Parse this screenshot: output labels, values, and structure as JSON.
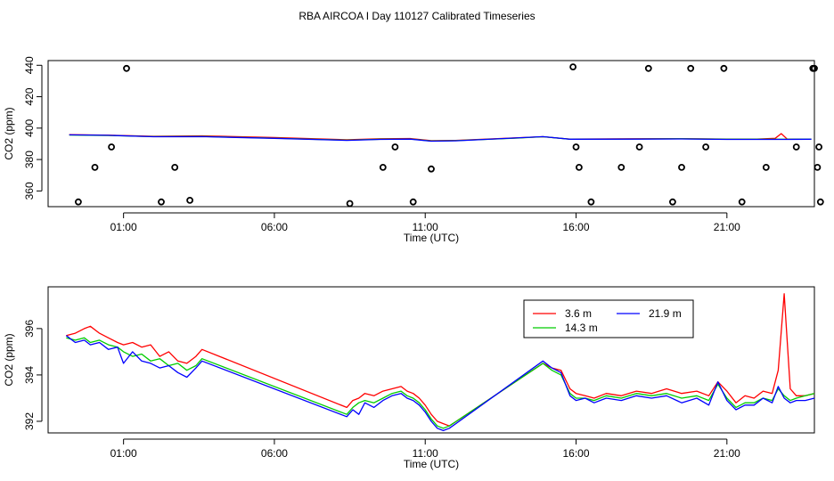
{
  "figure": {
    "title": "RBA AIRCOA I  Day 110127  Calibrated Timeseries"
  },
  "colors": {
    "s36": "#ff0000",
    "s143": "#00cc00",
    "s219": "#0000ff",
    "ink": "#000000"
  },
  "chart_data": [
    {
      "type": "line+scatter",
      "xlabel": "Time (UTC)",
      "ylabel": "CO2 (ppm)",
      "xlim": [
        -1.5,
        23.9
      ],
      "ylim": [
        350,
        443
      ],
      "xticks": [
        1,
        6,
        11,
        16,
        21
      ],
      "xtick_labels": [
        "01:00",
        "06:00",
        "11:00",
        "16:00",
        "21:00"
      ],
      "yticks": [
        360,
        380,
        400,
        420,
        440
      ],
      "ytick_labels": [
        "360",
        "380",
        "400",
        "420",
        "440"
      ],
      "grid": false,
      "series": [
        {
          "color_key": "s36",
          "x": [
            -0.8,
            0.5,
            2.0,
            3.6,
            6.0,
            8.4,
            9.5,
            10.5,
            11.2,
            12.0,
            14.0,
            14.9,
            15.8,
            18.0,
            19.5,
            21.0,
            22.0,
            22.6,
            22.8,
            23.0,
            23.8
          ],
          "y": [
            395.8,
            395.5,
            394.8,
            395.1,
            394.0,
            392.6,
            393.2,
            393.4,
            392.0,
            392.2,
            393.8,
            394.5,
            393.0,
            393.2,
            393.3,
            393.0,
            393.0,
            393.5,
            396.5,
            393.0,
            393.0
          ]
        },
        {
          "color_key": "s143",
          "x": [
            -0.8,
            0.5,
            2.0,
            3.6,
            6.0,
            8.4,
            9.5,
            10.5,
            11.2,
            12.0,
            14.0,
            14.9,
            15.8,
            18.0,
            19.5,
            21.0,
            22.0,
            23.0,
            23.8
          ],
          "y": [
            395.6,
            395.3,
            394.6,
            394.7,
            393.6,
            392.3,
            392.9,
            393.1,
            391.8,
            392.0,
            393.6,
            394.5,
            392.9,
            393.1,
            393.2,
            392.9,
            392.9,
            392.9,
            393.0
          ]
        },
        {
          "color_key": "s219",
          "x": [
            -0.8,
            0.5,
            2.0,
            3.6,
            6.0,
            8.4,
            9.5,
            10.5,
            11.2,
            12.0,
            14.0,
            14.9,
            15.8,
            18.0,
            19.5,
            21.0,
            22.0,
            23.0,
            23.8
          ],
          "y": [
            395.7,
            395.4,
            394.5,
            394.6,
            393.5,
            392.2,
            392.8,
            393.0,
            391.7,
            391.9,
            393.7,
            394.6,
            392.9,
            393.0,
            393.1,
            392.8,
            392.8,
            392.8,
            392.9
          ]
        }
      ],
      "outliers": {
        "x": [
          -0.5,
          0.05,
          0.6,
          1.1,
          2.25,
          2.7,
          3.2,
          8.5,
          9.6,
          10.0,
          10.6,
          11.2,
          15.9,
          16.0,
          16.1,
          16.5,
          17.5,
          18.1,
          18.4,
          19.2,
          19.5,
          19.8,
          20.3,
          20.9,
          21.5,
          22.3,
          23.3,
          23.85,
          24.0,
          24.05,
          24.1,
          23.9
        ],
        "y": [
          353,
          375,
          388,
          438,
          353,
          375,
          354,
          352,
          375,
          388,
          353,
          374,
          439,
          388,
          375,
          353,
          375,
          388,
          438,
          353,
          375,
          438,
          388,
          438,
          353,
          375,
          388,
          438,
          375,
          388,
          353,
          438
        ]
      }
    },
    {
      "type": "line",
      "xlabel": "Time (UTC)",
      "ylabel": "CO2 (ppm)",
      "xlim": [
        -1.5,
        23.9
      ],
      "ylim": [
        391.5,
        397.8
      ],
      "xticks": [
        1,
        6,
        11,
        16,
        21
      ],
      "xtick_labels": [
        "01:00",
        "06:00",
        "11:00",
        "16:00",
        "21:00"
      ],
      "yticks": [
        392,
        394,
        396
      ],
      "ytick_labels": [
        "392",
        "394",
        "396"
      ],
      "grid": false,
      "legend": {
        "position": "top-right",
        "entries": [
          {
            "label": "3.6 m",
            "color_key": "s36"
          },
          {
            "label": "14.3 m",
            "color_key": "s143"
          },
          {
            "label": "21.9 m",
            "color_key": "s219"
          }
        ]
      },
      "series": [
        {
          "name": "3.6 m",
          "color_key": "s36",
          "x": [
            -0.9,
            -0.6,
            -0.3,
            -0.1,
            0.2,
            0.5,
            0.8,
            1.0,
            1.3,
            1.6,
            1.9,
            2.2,
            2.5,
            2.8,
            3.1,
            3.4,
            3.6,
            8.4,
            8.6,
            8.8,
            9.0,
            9.3,
            9.6,
            9.9,
            10.2,
            10.4,
            10.6,
            10.8,
            11.0,
            11.2,
            11.4,
            11.6,
            11.8,
            14.9,
            15.2,
            15.5,
            15.8,
            16.0,
            16.3,
            16.6,
            17.0,
            17.5,
            18.0,
            18.5,
            19.0,
            19.5,
            20.0,
            20.4,
            20.7,
            21.0,
            21.3,
            21.6,
            21.9,
            22.2,
            22.5,
            22.7,
            22.9,
            23.1,
            23.3,
            23.6,
            23.9
          ],
          "y": [
            395.7,
            395.8,
            396.0,
            396.1,
            395.8,
            395.6,
            395.4,
            395.3,
            395.4,
            395.2,
            395.3,
            394.8,
            395.0,
            394.6,
            394.5,
            394.8,
            395.1,
            392.6,
            392.9,
            393.0,
            393.2,
            393.1,
            393.3,
            393.4,
            393.5,
            393.3,
            393.2,
            393.0,
            392.7,
            392.3,
            392.0,
            391.9,
            391.8,
            394.5,
            394.3,
            394.2,
            393.4,
            393.2,
            393.1,
            393.0,
            393.2,
            393.1,
            393.3,
            393.2,
            393.4,
            393.2,
            393.3,
            393.1,
            393.7,
            393.3,
            392.8,
            393.1,
            393.0,
            393.3,
            393.2,
            394.2,
            397.5,
            393.4,
            393.1,
            393.1,
            393.2
          ]
        },
        {
          "name": "14.3 m",
          "color_key": "s143",
          "x": [
            -0.9,
            -0.6,
            -0.3,
            -0.1,
            0.2,
            0.5,
            0.8,
            1.0,
            1.3,
            1.6,
            1.9,
            2.2,
            2.5,
            2.8,
            3.1,
            3.4,
            3.6,
            8.4,
            8.6,
            8.8,
            9.0,
            9.3,
            9.6,
            9.9,
            10.2,
            10.4,
            10.6,
            10.8,
            11.0,
            11.2,
            11.4,
            11.6,
            11.8,
            14.9,
            15.2,
            15.5,
            15.8,
            16.0,
            16.3,
            16.6,
            17.0,
            17.5,
            18.0,
            18.5,
            19.0,
            19.5,
            20.0,
            20.4,
            20.7,
            21.0,
            21.3,
            21.6,
            21.9,
            22.2,
            22.5,
            22.7,
            22.9,
            23.1,
            23.3,
            23.6,
            23.9
          ],
          "y": [
            395.6,
            395.5,
            395.6,
            395.4,
            395.5,
            395.3,
            395.2,
            395.0,
            394.8,
            394.9,
            394.6,
            394.7,
            394.4,
            394.5,
            394.2,
            394.4,
            394.7,
            392.3,
            392.6,
            392.8,
            392.9,
            392.8,
            393.0,
            393.2,
            393.3,
            393.1,
            393.0,
            392.8,
            392.5,
            392.1,
            391.8,
            391.7,
            391.8,
            394.5,
            394.2,
            394.0,
            393.2,
            393.0,
            393.0,
            392.9,
            393.1,
            393.0,
            393.2,
            393.1,
            393.2,
            393.0,
            393.1,
            392.9,
            393.6,
            393.0,
            392.6,
            392.8,
            392.8,
            393.0,
            392.9,
            393.4,
            393.1,
            392.9,
            393.0,
            393.1,
            393.2
          ]
        },
        {
          "name": "21.9 m",
          "color_key": "s219",
          "x": [
            -0.9,
            -0.6,
            -0.3,
            -0.1,
            0.2,
            0.5,
            0.8,
            1.0,
            1.3,
            1.6,
            1.9,
            2.2,
            2.5,
            2.8,
            3.1,
            3.4,
            3.6,
            8.4,
            8.6,
            8.8,
            9.0,
            9.3,
            9.6,
            9.9,
            10.2,
            10.4,
            10.6,
            10.8,
            11.0,
            11.2,
            11.4,
            11.6,
            11.8,
            14.9,
            15.2,
            15.5,
            15.8,
            16.0,
            16.3,
            16.6,
            17.0,
            17.5,
            18.0,
            18.5,
            19.0,
            19.5,
            20.0,
            20.4,
            20.7,
            21.0,
            21.3,
            21.6,
            21.9,
            22.2,
            22.5,
            22.7,
            22.9,
            23.1,
            23.3,
            23.6,
            23.9
          ],
          "y": [
            395.7,
            395.4,
            395.5,
            395.3,
            395.4,
            395.1,
            395.2,
            394.5,
            395.0,
            394.6,
            394.5,
            394.3,
            394.4,
            394.1,
            393.9,
            394.3,
            394.6,
            392.2,
            392.5,
            392.3,
            392.8,
            392.6,
            392.9,
            393.1,
            393.2,
            393.0,
            392.9,
            392.7,
            392.4,
            392.0,
            391.7,
            391.6,
            391.7,
            394.6,
            394.3,
            394.1,
            393.1,
            392.9,
            393.0,
            392.8,
            393.0,
            392.9,
            393.1,
            393.0,
            393.1,
            392.8,
            393.0,
            392.7,
            393.7,
            392.9,
            392.5,
            392.7,
            392.7,
            393.0,
            392.8,
            393.5,
            393.0,
            392.8,
            392.9,
            392.9,
            393.0
          ]
        }
      ]
    }
  ]
}
